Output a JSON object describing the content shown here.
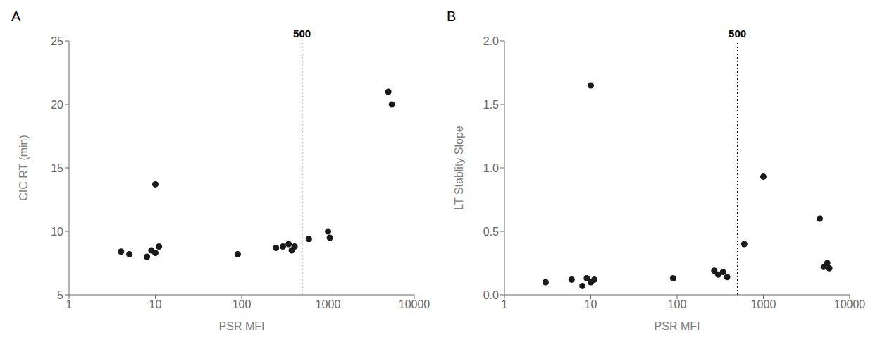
{
  "chart_data": [
    {
      "type": "scatter",
      "title": "A",
      "xlabel": "PSR MFI",
      "ylabel": "CIC RT (min)",
      "x": [
        4,
        5,
        8,
        9,
        10,
        10,
        11,
        90,
        250,
        300,
        350,
        380,
        410,
        600,
        1000,
        1050,
        5000,
        5500
      ],
      "y": [
        8.4,
        8.2,
        8.0,
        8.5,
        13.7,
        8.3,
        8.8,
        8.2,
        8.7,
        8.8,
        9.0,
        8.5,
        8.8,
        9.4,
        10.0,
        9.5,
        21.0,
        20.0
      ],
      "color": "#1a1a1a",
      "log": "x",
      "grid": false,
      "xlim": [
        1,
        10000
      ],
      "xticks": [
        1,
        10,
        100,
        1000,
        10000
      ],
      "ylim": [
        5,
        25
      ],
      "yticks": [
        5,
        10,
        15,
        20,
        25
      ],
      "annotations": [
        {
          "x": 500,
          "text": "500",
          "line_style": "dotted"
        }
      ]
    },
    {
      "type": "scatter",
      "title": "B",
      "xlabel": "PSR MFI",
      "ylabel": "LT Stablity Slope",
      "x": [
        3,
        6,
        8,
        9,
        10,
        10,
        11,
        90,
        270,
        300,
        340,
        380,
        600,
        1000,
        4500,
        5000,
        5500,
        5800
      ],
      "y": [
        0.1,
        0.12,
        0.07,
        0.13,
        1.65,
        0.1,
        0.12,
        0.13,
        0.19,
        0.16,
        0.18,
        0.14,
        0.4,
        0.93,
        0.6,
        0.22,
        0.25,
        0.21
      ],
      "color": "#1a1a1a",
      "log": "x",
      "grid": false,
      "xlim": [
        1,
        10000
      ],
      "xticks": [
        1,
        10,
        100,
        1000,
        10000
      ],
      "ylim": [
        0.0,
        2.0
      ],
      "yticks": [
        {
          "value": 0.0,
          "label": "0.0"
        },
        0.5,
        {
          "value": 1.0,
          "label": "1.0"
        },
        1.5,
        {
          "value": 2.0,
          "label": "2.0"
        }
      ],
      "annotations": [
        {
          "x": 500,
          "text": "500",
          "line_style": "dotted"
        }
      ]
    }
  ]
}
